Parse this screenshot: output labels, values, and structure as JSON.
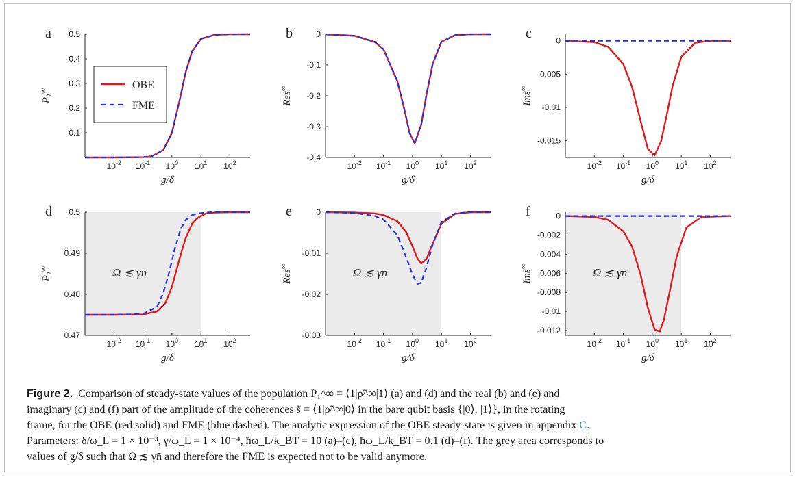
{
  "caption": {
    "label": "Figure 2.",
    "lines": [
      "Comparison of steady-state values of the population P₁^∞ = ⟨1|ρ̃^∞|1⟩ (a) and (d) and the real (b) and (e) and",
      "imaginary (c) and (f) part of the amplitude of the coherences s̃ = ⟨1|ρ̃^∞|0⟩ in the bare qubit basis {|0⟩, |1⟩}, in the rotating",
      "frame, for the OBE (red solid) and FME (blue dashed). The analytic expression of the OBE steady-state is given in appendix",
      "Parameters: δ/ω_L = 1 × 10⁻³, γ/ω_L = 1 × 10⁻⁴, ħω_L/k_BT = 10 (a)–(c), ħω_L/k_BT = 0.1 (d)–(f). The grey area corresponds to",
      "values of g/δ such that Ω ≲ γn̄ and therefore the FME is expected not to be valid anymore."
    ],
    "appendix_link": "C",
    "line3_end": "."
  },
  "legend": {
    "obe": "OBE",
    "fme": "FME"
  },
  "colors": {
    "obe": "#e0191c",
    "fme": "#1c2fe6",
    "shade": "#ebebeb"
  },
  "chart_data": [
    {
      "id": "a",
      "type": "line",
      "panel_label": "a",
      "xlabel": "g/δ",
      "ylabel": "P₁^∞",
      "xscale": "log",
      "xlim": [
        0.001,
        500
      ],
      "ylim": [
        0,
        0.5
      ],
      "xticks": [
        "10^-2",
        "10^-1",
        "10^0",
        "10^1",
        "10^2"
      ],
      "yticks": [
        "0.1",
        "0.2",
        "0.3",
        "0.4",
        "0.5"
      ],
      "shaded_region": null,
      "annotation": "",
      "legend": true,
      "series": [
        {
          "name": "OBE",
          "style": "solid",
          "x": [
            0.001,
            0.01,
            0.1,
            0.2,
            0.5,
            1,
            2,
            3,
            5,
            10,
            30,
            100,
            500
          ],
          "y": [
            0,
            0,
            0.0012,
            0.0048,
            0.0294,
            0.1,
            0.25,
            0.3462,
            0.4308,
            0.4808,
            0.4978,
            0.4998,
            0.5
          ]
        },
        {
          "name": "FME",
          "style": "dashed",
          "x": [
            0.001,
            0.01,
            0.1,
            0.2,
            0.5,
            1,
            2,
            3,
            5,
            10,
            30,
            100,
            500
          ],
          "y": [
            0,
            0,
            0.0012,
            0.0048,
            0.0294,
            0.1,
            0.25,
            0.3462,
            0.4308,
            0.4808,
            0.4978,
            0.4998,
            0.5
          ]
        }
      ]
    },
    {
      "id": "b",
      "type": "line",
      "panel_label": "b",
      "xlabel": "g/δ",
      "ylabel": "Res̃^∞",
      "xscale": "log",
      "xlim": [
        0.001,
        500
      ],
      "ylim": [
        -0.4,
        0
      ],
      "xticks": [
        "10^-2",
        "10^-1",
        "10^0",
        "10^1",
        "10^2"
      ],
      "yticks": [
        "0",
        "-0.1",
        "-0.2",
        "-0.3",
        "-0.4"
      ],
      "shaded_region": null,
      "annotation": "",
      "legend": false,
      "series": [
        {
          "name": "OBE",
          "style": "solid",
          "x": [
            0.001,
            0.01,
            0.05,
            0.1,
            0.3,
            0.5,
            0.8,
            1.2,
            2,
            3,
            5,
            10,
            30,
            100,
            500
          ],
          "y": [
            -0.0005,
            -0.005,
            -0.025,
            -0.049,
            -0.1525,
            -0.2353,
            -0.3213,
            -0.3542,
            -0.2941,
            -0.2006,
            -0.0958,
            -0.0246,
            -0.0028,
            -0.0003,
            0
          ]
        },
        {
          "name": "FME",
          "style": "dashed",
          "x": [
            0.001,
            0.01,
            0.05,
            0.1,
            0.3,
            0.5,
            0.8,
            1.2,
            2,
            3,
            5,
            10,
            30,
            100,
            500
          ],
          "y": [
            -0.0005,
            -0.005,
            -0.025,
            -0.049,
            -0.1525,
            -0.2353,
            -0.3213,
            -0.3542,
            -0.2941,
            -0.2006,
            -0.0958,
            -0.0246,
            -0.0028,
            -0.0003,
            0
          ]
        }
      ]
    },
    {
      "id": "c",
      "type": "line",
      "panel_label": "c",
      "xlabel": "g/δ",
      "ylabel": "Ims̃^∞",
      "xscale": "log",
      "xlim": [
        0.001,
        500
      ],
      "ylim": [
        -0.0175,
        0.001
      ],
      "xticks": [
        "10^-2",
        "10^-1",
        "10^0",
        "10^1",
        "10^2"
      ],
      "yticks": [
        "0",
        "-0.005",
        "-0.01",
        "-0.015"
      ],
      "shaded_region": null,
      "annotation": "",
      "legend": false,
      "series": [
        {
          "name": "OBE",
          "style": "solid",
          "x": [
            0.001,
            0.01,
            0.03,
            0.1,
            0.2,
            0.4,
            0.7,
            1.2,
            2,
            3,
            5,
            10,
            30,
            100,
            500
          ],
          "y": [
            0,
            -0.0002,
            -0.0009,
            -0.0035,
            -0.0069,
            -0.0121,
            -0.0162,
            -0.0172,
            -0.0151,
            -0.0116,
            -0.0068,
            -0.0024,
            -0.0003,
            0,
            0
          ]
        },
        {
          "name": "FME",
          "style": "dashed",
          "x": [
            0.001,
            500
          ],
          "y": [
            0,
            0
          ]
        }
      ]
    },
    {
      "id": "d",
      "type": "line",
      "panel_label": "d",
      "xlabel": "g/δ",
      "ylabel": "P₁^∞",
      "xscale": "log",
      "xlim": [
        0.001,
        500
      ],
      "ylim": [
        0.47,
        0.5
      ],
      "xticks": [
        "10^-2",
        "10^-1",
        "10^0",
        "10^1",
        "10^2"
      ],
      "yticks": [
        "0.5",
        "0.49",
        "0.48",
        "0.47"
      ],
      "shaded_region": [
        0.001,
        10
      ],
      "annotation": "Ω ≲ γn̄",
      "legend": false,
      "series": [
        {
          "name": "OBE",
          "style": "solid",
          "x": [
            0.001,
            0.01,
            0.1,
            0.3,
            0.6,
            1,
            1.5,
            2,
            3,
            5,
            8,
            15,
            30,
            100,
            500
          ],
          "y": [
            0.475,
            0.475,
            0.4751,
            0.4758,
            0.4779,
            0.4818,
            0.4864,
            0.4896,
            0.4937,
            0.4972,
            0.4987,
            0.4997,
            0.4999,
            0.5,
            0.5
          ]
        },
        {
          "name": "FME",
          "style": "dashed",
          "x": [
            0.001,
            0.01,
            0.1,
            0.3,
            0.5,
            0.8,
            1.2,
            2,
            3,
            5,
            8,
            15,
            30,
            100,
            500
          ],
          "y": [
            0.475,
            0.475,
            0.4752,
            0.4769,
            0.4802,
            0.4853,
            0.4905,
            0.4959,
            0.4981,
            0.4993,
            0.4997,
            0.4999,
            0.5,
            0.5,
            0.5
          ]
        }
      ]
    },
    {
      "id": "e",
      "type": "line",
      "panel_label": "e",
      "xlabel": "g/δ",
      "ylabel": "Res̃^∞",
      "xscale": "log",
      "xlim": [
        0.001,
        500
      ],
      "ylim": [
        -0.03,
        0
      ],
      "xticks": [
        "10^-2",
        "10^-1",
        "10^0",
        "10^1",
        "10^2"
      ],
      "yticks": [
        "0",
        "-0.01",
        "-0.02",
        "-0.03"
      ],
      "shaded_region": [
        0.001,
        10
      ],
      "annotation": "Ω ≲ γn̄",
      "legend": false,
      "series": [
        {
          "name": "OBE",
          "style": "solid",
          "x": [
            0.001,
            0.01,
            0.05,
            0.1,
            0.3,
            0.6,
            1,
            1.5,
            2,
            3,
            5,
            10,
            30,
            100,
            500
          ],
          "y": [
            0,
            -0.0001,
            -0.0003,
            -0.0007,
            -0.0022,
            -0.0048,
            -0.0083,
            -0.0113,
            -0.0125,
            -0.0115,
            -0.0077,
            -0.0028,
            -0.0004,
            0,
            0
          ]
        },
        {
          "name": "FME",
          "style": "dashed",
          "x": [
            0.001,
            0.01,
            0.05,
            0.1,
            0.3,
            0.6,
            1,
            1.5,
            2,
            3,
            5,
            10,
            30,
            100,
            500
          ],
          "y": [
            0,
            -0.0002,
            -0.0009,
            -0.0018,
            -0.0056,
            -0.0109,
            -0.0152,
            -0.0175,
            -0.0172,
            -0.0137,
            -0.0078,
            -0.0024,
            -0.0003,
            0,
            0
          ]
        }
      ]
    },
    {
      "id": "f",
      "type": "line",
      "panel_label": "f",
      "xlabel": "g/δ",
      "ylabel": "Ims̃^∞",
      "xscale": "log",
      "xlim": [
        0.001,
        500
      ],
      "ylim": [
        -0.0125,
        0.0004
      ],
      "xticks": [
        "10^-2",
        "10^-1",
        "10^0",
        "10^1",
        "10^2"
      ],
      "yticks": [
        "0",
        "-0.002",
        "-0.004",
        "-0.006",
        "-0.008",
        "-0.01",
        "-0.012"
      ],
      "shaded_region": [
        0.001,
        10
      ],
      "annotation": "Ω ≲ γn̄",
      "legend": false,
      "series": [
        {
          "name": "OBE",
          "style": "solid",
          "x": [
            0.001,
            0.01,
            0.03,
            0.1,
            0.2,
            0.4,
            0.7,
            1.2,
            1.8,
            2.5,
            4,
            7,
            15,
            50,
            500
          ],
          "y": [
            0,
            -0.0001,
            -0.0004,
            -0.0016,
            -0.0032,
            -0.0062,
            -0.0096,
            -0.0119,
            -0.0121,
            -0.0109,
            -0.0079,
            -0.0042,
            -0.0012,
            -0.0001,
            0
          ]
        },
        {
          "name": "FME",
          "style": "dashed",
          "x": [
            0.001,
            500
          ],
          "y": [
            0,
            0
          ]
        }
      ]
    }
  ]
}
